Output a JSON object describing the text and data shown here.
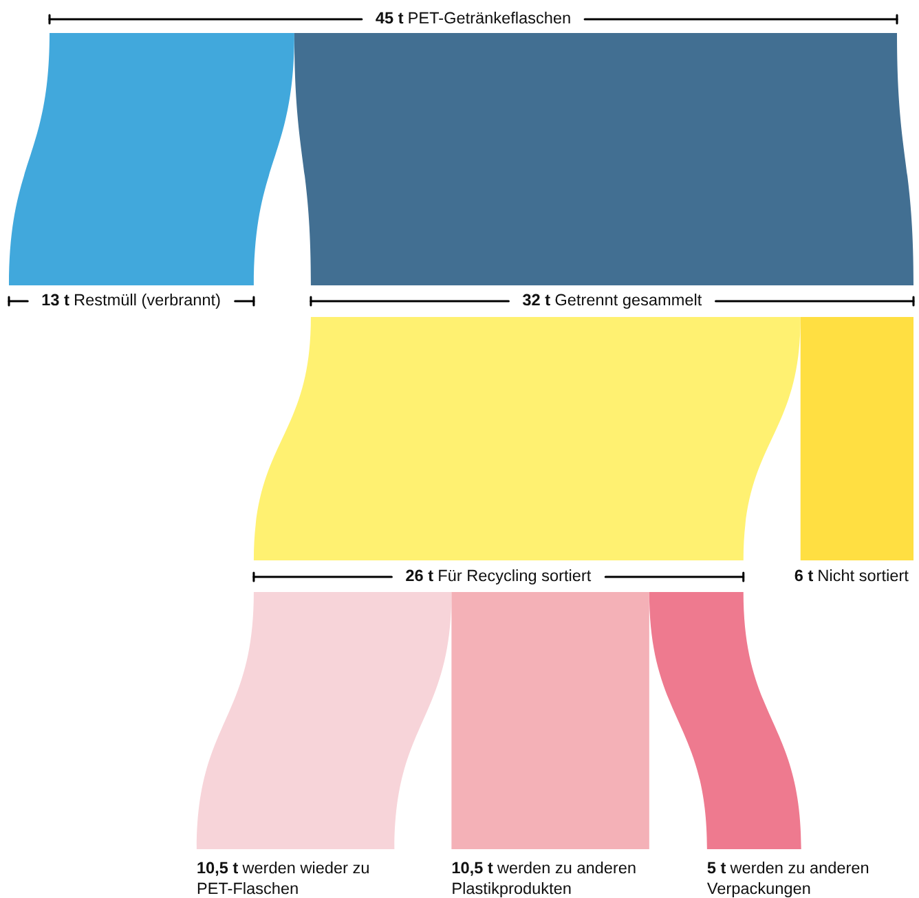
{
  "chart_data": {
    "type": "other",
    "categories": [
      "PET-Getränkeflaschen",
      "Restmüll (verbrannt)",
      "Getrennt gesammelt",
      "Für Recycling sortiert",
      "Nicht sortiert",
      "werden wieder zu\nPET-Flaschen",
      "werden zu anderen\nPlastikprodukten",
      "werden zu anderen\nVerpackungen"
    ],
    "values": [
      45,
      13,
      32,
      26,
      6,
      10.5,
      10.5,
      5
    ],
    "value_labels": [
      "45 t",
      "13 t",
      "32 t",
      "26 t",
      "6 t",
      "10,5 t",
      "10,5 t",
      "5 t"
    ],
    "colors": [
      null,
      "#41a8dc",
      "#426f92",
      "#fff171",
      "#ffdf42",
      "#f7d4d9",
      "#f4b1b7",
      "#ee7a8f"
    ]
  }
}
